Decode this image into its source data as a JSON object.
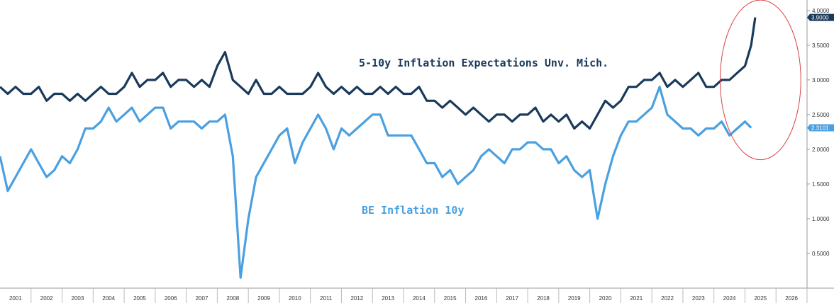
{
  "chart_data": {
    "type": "line",
    "x_axis": {
      "tick_labels": [
        "2001",
        "2002",
        "2003",
        "2004",
        "2005",
        "2006",
        "2007",
        "2008",
        "2009",
        "2010",
        "2011",
        "2012",
        "2013",
        "2014",
        "2015",
        "2016",
        "2017",
        "2018",
        "2019",
        "2020",
        "2021",
        "2022",
        "2023",
        "2024",
        "2025",
        "2026"
      ],
      "range": [
        2001.0,
        2027.0
      ]
    },
    "y_axis": {
      "tick_labels": [
        "4.0000",
        "3.5000",
        "3.0000",
        "2.5000",
        "2.0000",
        "1.5000",
        "1.0000",
        "0.5000"
      ],
      "range": [
        0.0,
        4.1
      ],
      "position": "right"
    },
    "grid": false,
    "series": [
      {
        "name": "5-10y Inflation Expectations Unv. Mich.",
        "color": "#1a3a5c",
        "last_value_label": "3.9000",
        "points": [
          [
            2001.0,
            2.9
          ],
          [
            2001.25,
            2.8
          ],
          [
            2001.5,
            2.9
          ],
          [
            2001.75,
            2.8
          ],
          [
            2002.0,
            2.8
          ],
          [
            2002.25,
            2.9
          ],
          [
            2002.5,
            2.7
          ],
          [
            2002.75,
            2.8
          ],
          [
            2003.0,
            2.8
          ],
          [
            2003.25,
            2.7
          ],
          [
            2003.5,
            2.8
          ],
          [
            2003.75,
            2.7
          ],
          [
            2004.0,
            2.8
          ],
          [
            2004.25,
            2.9
          ],
          [
            2004.5,
            2.8
          ],
          [
            2004.75,
            2.8
          ],
          [
            2005.0,
            2.9
          ],
          [
            2005.25,
            3.1
          ],
          [
            2005.5,
            2.9
          ],
          [
            2005.75,
            3.0
          ],
          [
            2006.0,
            3.0
          ],
          [
            2006.25,
            3.1
          ],
          [
            2006.5,
            2.9
          ],
          [
            2006.75,
            3.0
          ],
          [
            2007.0,
            3.0
          ],
          [
            2007.25,
            2.9
          ],
          [
            2007.5,
            3.0
          ],
          [
            2007.75,
            2.9
          ],
          [
            2008.0,
            3.2
          ],
          [
            2008.25,
            3.4
          ],
          [
            2008.5,
            3.0
          ],
          [
            2008.75,
            2.9
          ],
          [
            2009.0,
            2.8
          ],
          [
            2009.25,
            3.0
          ],
          [
            2009.5,
            2.8
          ],
          [
            2009.75,
            2.8
          ],
          [
            2010.0,
            2.9
          ],
          [
            2010.25,
            2.8
          ],
          [
            2010.5,
            2.8
          ],
          [
            2010.75,
            2.8
          ],
          [
            2011.0,
            2.9
          ],
          [
            2011.25,
            3.1
          ],
          [
            2011.5,
            2.9
          ],
          [
            2011.75,
            2.8
          ],
          [
            2012.0,
            2.9
          ],
          [
            2012.25,
            2.8
          ],
          [
            2012.5,
            2.9
          ],
          [
            2012.75,
            2.8
          ],
          [
            2013.0,
            2.8
          ],
          [
            2013.25,
            2.9
          ],
          [
            2013.5,
            2.8
          ],
          [
            2013.75,
            2.9
          ],
          [
            2014.0,
            2.8
          ],
          [
            2014.25,
            2.8
          ],
          [
            2014.5,
            2.9
          ],
          [
            2014.75,
            2.7
          ],
          [
            2015.0,
            2.7
          ],
          [
            2015.25,
            2.6
          ],
          [
            2015.5,
            2.7
          ],
          [
            2015.75,
            2.6
          ],
          [
            2016.0,
            2.5
          ],
          [
            2016.25,
            2.6
          ],
          [
            2016.5,
            2.5
          ],
          [
            2016.75,
            2.4
          ],
          [
            2017.0,
            2.5
          ],
          [
            2017.25,
            2.5
          ],
          [
            2017.5,
            2.4
          ],
          [
            2017.75,
            2.5
          ],
          [
            2018.0,
            2.5
          ],
          [
            2018.25,
            2.6
          ],
          [
            2018.5,
            2.4
          ],
          [
            2018.75,
            2.5
          ],
          [
            2019.0,
            2.4
          ],
          [
            2019.25,
            2.5
          ],
          [
            2019.5,
            2.3
          ],
          [
            2019.75,
            2.4
          ],
          [
            2020.0,
            2.3
          ],
          [
            2020.25,
            2.5
          ],
          [
            2020.5,
            2.7
          ],
          [
            2020.75,
            2.6
          ],
          [
            2021.0,
            2.7
          ],
          [
            2021.25,
            2.9
          ],
          [
            2021.5,
            2.9
          ],
          [
            2021.75,
            3.0
          ],
          [
            2022.0,
            3.0
          ],
          [
            2022.25,
            3.1
          ],
          [
            2022.5,
            2.9
          ],
          [
            2022.75,
            3.0
          ],
          [
            2023.0,
            2.9
          ],
          [
            2023.25,
            3.0
          ],
          [
            2023.5,
            3.1
          ],
          [
            2023.75,
            2.9
          ],
          [
            2024.0,
            2.9
          ],
          [
            2024.25,
            3.0
          ],
          [
            2024.5,
            3.0
          ],
          [
            2024.75,
            3.1
          ],
          [
            2025.0,
            3.2
          ],
          [
            2025.2,
            3.5
          ],
          [
            2025.33,
            3.9
          ]
        ]
      },
      {
        "name": "BE Inflation 10y",
        "color": "#4aa0e0",
        "last_value_label": "2.3101",
        "points": [
          [
            2001.0,
            1.9
          ],
          [
            2001.25,
            1.4
          ],
          [
            2001.5,
            1.6
          ],
          [
            2001.75,
            1.8
          ],
          [
            2002.0,
            2.0
          ],
          [
            2002.25,
            1.8
          ],
          [
            2002.5,
            1.6
          ],
          [
            2002.75,
            1.7
          ],
          [
            2003.0,
            1.9
          ],
          [
            2003.25,
            1.8
          ],
          [
            2003.5,
            2.0
          ],
          [
            2003.75,
            2.3
          ],
          [
            2004.0,
            2.3
          ],
          [
            2004.25,
            2.4
          ],
          [
            2004.5,
            2.6
          ],
          [
            2004.75,
            2.4
          ],
          [
            2005.0,
            2.5
          ],
          [
            2005.25,
            2.6
          ],
          [
            2005.5,
            2.4
          ],
          [
            2005.75,
            2.5
          ],
          [
            2006.0,
            2.6
          ],
          [
            2006.25,
            2.6
          ],
          [
            2006.5,
            2.3
          ],
          [
            2006.75,
            2.4
          ],
          [
            2007.0,
            2.4
          ],
          [
            2007.25,
            2.4
          ],
          [
            2007.5,
            2.3
          ],
          [
            2007.75,
            2.4
          ],
          [
            2008.0,
            2.4
          ],
          [
            2008.25,
            2.5
          ],
          [
            2008.5,
            1.9
          ],
          [
            2008.75,
            0.15
          ],
          [
            2009.0,
            1.0
          ],
          [
            2009.25,
            1.6
          ],
          [
            2009.5,
            1.8
          ],
          [
            2009.75,
            2.0
          ],
          [
            2010.0,
            2.2
          ],
          [
            2010.25,
            2.3
          ],
          [
            2010.5,
            1.8
          ],
          [
            2010.75,
            2.1
          ],
          [
            2011.0,
            2.3
          ],
          [
            2011.25,
            2.5
          ],
          [
            2011.5,
            2.3
          ],
          [
            2011.75,
            2.0
          ],
          [
            2012.0,
            2.3
          ],
          [
            2012.25,
            2.2
          ],
          [
            2012.5,
            2.3
          ],
          [
            2012.75,
            2.4
          ],
          [
            2013.0,
            2.5
          ],
          [
            2013.25,
            2.5
          ],
          [
            2013.5,
            2.2
          ],
          [
            2013.75,
            2.2
          ],
          [
            2014.0,
            2.2
          ],
          [
            2014.25,
            2.2
          ],
          [
            2014.5,
            2.0
          ],
          [
            2014.75,
            1.8
          ],
          [
            2015.0,
            1.8
          ],
          [
            2015.25,
            1.6
          ],
          [
            2015.5,
            1.7
          ],
          [
            2015.75,
            1.5
          ],
          [
            2016.0,
            1.6
          ],
          [
            2016.25,
            1.7
          ],
          [
            2016.5,
            1.9
          ],
          [
            2016.75,
            2.0
          ],
          [
            2017.0,
            1.9
          ],
          [
            2017.25,
            1.8
          ],
          [
            2017.5,
            2.0
          ],
          [
            2017.75,
            2.0
          ],
          [
            2018.0,
            2.1
          ],
          [
            2018.25,
            2.1
          ],
          [
            2018.5,
            2.0
          ],
          [
            2018.75,
            2.0
          ],
          [
            2019.0,
            1.8
          ],
          [
            2019.25,
            1.9
          ],
          [
            2019.5,
            1.7
          ],
          [
            2019.75,
            1.6
          ],
          [
            2020.0,
            1.7
          ],
          [
            2020.25,
            1.0
          ],
          [
            2020.5,
            1.5
          ],
          [
            2020.75,
            1.9
          ],
          [
            2021.0,
            2.2
          ],
          [
            2021.25,
            2.4
          ],
          [
            2021.5,
            2.4
          ],
          [
            2021.75,
            2.5
          ],
          [
            2022.0,
            2.6
          ],
          [
            2022.25,
            2.9
          ],
          [
            2022.5,
            2.5
          ],
          [
            2022.75,
            2.4
          ],
          [
            2023.0,
            2.3
          ],
          [
            2023.25,
            2.3
          ],
          [
            2023.5,
            2.2
          ],
          [
            2023.75,
            2.3
          ],
          [
            2024.0,
            2.3
          ],
          [
            2024.25,
            2.4
          ],
          [
            2024.5,
            2.2
          ],
          [
            2024.75,
            2.3
          ],
          [
            2025.0,
            2.4
          ],
          [
            2025.2,
            2.31
          ]
        ]
      }
    ],
    "annotations": [
      {
        "text": "5-10y Inflation Expectations Unv. Mich.",
        "color": "#1a3a5c"
      },
      {
        "text": "BE Inflation 10y",
        "color": "#4aa0e0"
      },
      {
        "type": "ellipse",
        "color": "#d94040",
        "center": [
          2025.5,
          3.0
        ],
        "radii": [
          1.3,
          1.15
        ]
      }
    ]
  }
}
